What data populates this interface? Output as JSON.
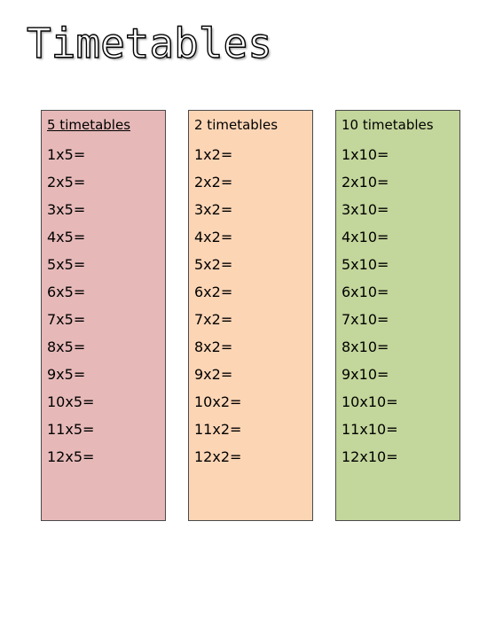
{
  "title": "Timetables",
  "colors": {
    "five_column_bg": "#e6b9b8",
    "two_column_bg": "#fcd5b5",
    "ten_column_bg": "#c3d69b"
  },
  "columns": [
    {
      "heading": "5 timetables",
      "rows": [
        "1x5=",
        "2x5=",
        "3x5=",
        "4x5=",
        "5x5=",
        "6x5=",
        "7x5=",
        "8x5=",
        "9x5=",
        "10x5=",
        "11x5=",
        "12x5="
      ]
    },
    {
      "heading": "2 timetables",
      "rows": [
        "1x2=",
        "2x2=",
        "3x2=",
        "4x2=",
        "5x2=",
        "6x2=",
        "7x2=",
        "8x2=",
        "9x2=",
        "10x2=",
        "11x2=",
        "12x2="
      ]
    },
    {
      "heading": "10 timetables",
      "rows": [
        "1x10=",
        "2x10=",
        "3x10=",
        "4x10=",
        "5x10=",
        "6x10=",
        "7x10=",
        "8x10=",
        "9x10=",
        "10x10=",
        "11x10=",
        "12x10="
      ]
    }
  ]
}
